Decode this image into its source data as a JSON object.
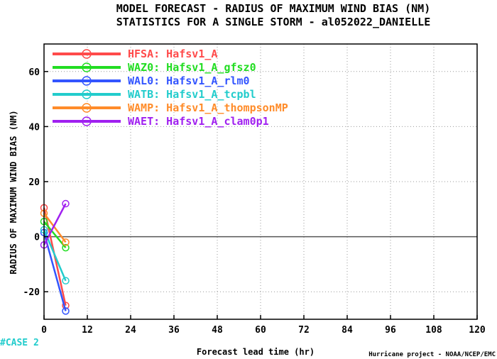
{
  "chart_data": {
    "type": "line",
    "title": "MODEL FORECAST - RADIUS OF MAXIMUM WIND BIAS (NM)",
    "subtitle": "STATISTICS FOR A SINGLE STORM - al052022_DANIELLE",
    "xlabel": "Forecast lead time (hr)",
    "ylabel": "RADIUS OF MAXIMUM WIND BIAS (NM)",
    "xlim": [
      0,
      120
    ],
    "ylim": [
      -30,
      70
    ],
    "x_ticks": [
      "0",
      "12",
      "24",
      "36",
      "48",
      "60",
      "72",
      "84",
      "96",
      "108",
      "120"
    ],
    "y_ticks": [
      "-20",
      "0",
      "20",
      "40",
      "60"
    ],
    "grid": true,
    "legend_position": "top-left",
    "x": [
      0,
      6
    ],
    "series": [
      {
        "name": "HFSA: Hafsv1_A",
        "color": "#ff4a4a",
        "values": [
          10.5,
          -25
        ]
      },
      {
        "name": "WAZ0: Hafsv1_A_gfsz0",
        "color": "#22dd22",
        "values": [
          5.5,
          -4
        ]
      },
      {
        "name": "WAL0: Hafsv1_A_rlm0",
        "color": "#3355ff",
        "values": [
          1.5,
          -27
        ]
      },
      {
        "name": "WATB: Hafsv1_A_tcpbl",
        "color": "#22cccc",
        "values": [
          2.5,
          -16
        ]
      },
      {
        "name": "WAMP: Hafsv1_A_thompsonMP",
        "color": "#ff8c2a",
        "values": [
          8.5,
          -2
        ]
      },
      {
        "name": "WAET: Hafsv1_A_clam0p1",
        "color": "#a020f0",
        "values": [
          -3,
          12
        ]
      }
    ]
  },
  "case_label": "#CASE 2",
  "case_color": "#22cccc",
  "credit": "Hurricane project - NOAA/NCEP/EMC"
}
